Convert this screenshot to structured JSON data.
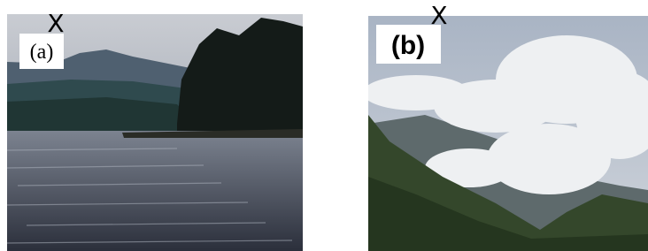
{
  "panels": [
    {
      "label": "(a)",
      "marker": "X"
    },
    {
      "label": "(b)",
      "marker": "X"
    }
  ]
}
